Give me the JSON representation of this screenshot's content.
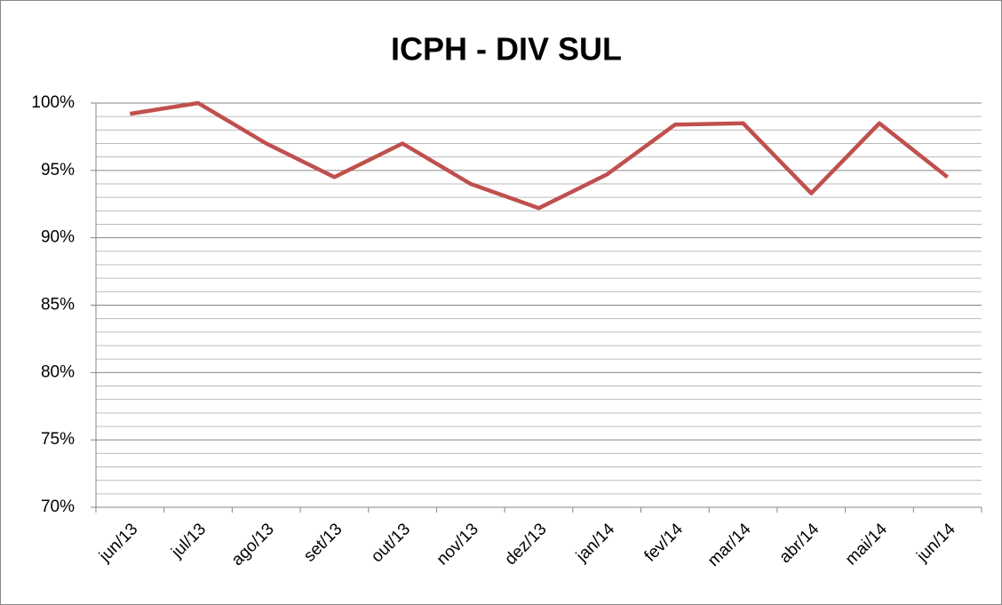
{
  "chart_data": {
    "type": "line",
    "title": "ICPH - DIV SUL",
    "categories": [
      "jun/13",
      "jul/13",
      "ago/13",
      "set/13",
      "out/13",
      "nov/13",
      "dez/13",
      "jan/14",
      "fev/14",
      "mar/14",
      "abr/14",
      "mai/14",
      "jun/14"
    ],
    "series": [
      {
        "name": "ICPH",
        "color": "#c0504d",
        "values": [
          99.2,
          100,
          97.0,
          94.5,
          97.0,
          94.0,
          92.2,
          94.7,
          98.4,
          98.5,
          93.3,
          98.5,
          94.5
        ]
      }
    ],
    "ylim": [
      70,
      100
    ],
    "yticks": [
      {
        "value": 70,
        "label": "70%"
      },
      {
        "value": 75,
        "label": "75%"
      },
      {
        "value": 80,
        "label": "80%"
      },
      {
        "value": 85,
        "label": "85%"
      },
      {
        "value": 90,
        "label": "90%"
      },
      {
        "value": 95,
        "label": "95%"
      },
      {
        "value": 100,
        "label": "100%"
      }
    ],
    "minor_yticks": [
      71,
      72,
      73,
      74,
      76,
      77,
      78,
      79,
      81,
      82,
      83,
      84,
      86,
      87,
      88,
      89,
      91,
      92,
      93,
      94,
      96,
      97,
      98,
      99
    ],
    "grid": true,
    "legend": false
  }
}
